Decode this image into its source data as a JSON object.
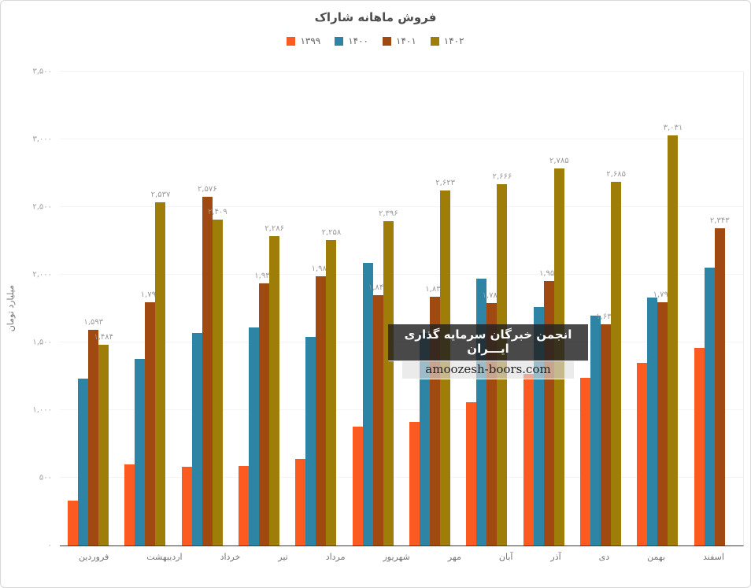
{
  "title": "فروش ماهانه شاراک",
  "watermark": {
    "line1": "انجمن خبرگان سرمایه گذاری ایـــران",
    "line2": "amoozesh-boors.com"
  },
  "chart_data": {
    "type": "bar",
    "title": "فروش ماهانه شاراک",
    "ylabel": "میلیارد تومان",
    "ylim": [
      0,
      3500
    ],
    "ytick_step": 500,
    "grid": "horizontal-faint",
    "legend_position": "top",
    "yticks": [
      {
        "value": 0,
        "label": "۰"
      },
      {
        "value": 500,
        "label": "۵۰۰"
      },
      {
        "value": 1000,
        "label": "۱,۰۰۰"
      },
      {
        "value": 1500,
        "label": "۱,۵۰۰"
      },
      {
        "value": 2000,
        "label": "۲,۰۰۰"
      },
      {
        "value": 2500,
        "label": "۲,۵۰۰"
      },
      {
        "value": 3000,
        "label": "۳,۰۰۰"
      },
      {
        "value": 3500,
        "label": "۳,۵۰۰"
      }
    ],
    "categories": [
      "فروردین",
      "اردیبهشت",
      "خرداد",
      "تیر",
      "مرداد",
      "شهریور",
      "مهر",
      "آبان",
      "آذر",
      "دی",
      "بهمن",
      "اسفند"
    ],
    "series": [
      {
        "key": "1399",
        "name": "۱۳۹۹",
        "color": "#FB5B21",
        "values": [
          330,
          600,
          580,
          585,
          640,
          880,
          910,
          1060,
          1270,
          1240,
          1350,
          1460
        ],
        "value_labels": [
          null,
          null,
          null,
          null,
          null,
          null,
          null,
          null,
          null,
          null,
          null,
          null
        ]
      },
      {
        "key": "1400",
        "name": "۱۴۰۰",
        "color": "#2E84A4",
        "values": [
          1230,
          1380,
          1570,
          1610,
          1540,
          2090,
          1570,
          1970,
          1760,
          1700,
          1830,
          2050
        ],
        "value_labels": [
          null,
          null,
          null,
          null,
          null,
          null,
          null,
          null,
          null,
          null,
          null,
          null
        ]
      },
      {
        "key": "1401",
        "name": "۱۴۰۱",
        "color": "#A04911",
        "values": [
          1593,
          1798,
          2576,
          1937,
          1987,
          1849,
          1837,
          1789,
          1955,
          1631,
          1796,
          2343
        ],
        "value_labels": [
          "۱,۵۹۳",
          "۱,۷۹۸",
          "۲,۵۷۶",
          "۱,۹۳۷",
          "۱,۹۸۷",
          "۱,۸۴۹",
          "۱,۸۳۷",
          "۱,۷۸۹",
          "۱,۹۵۵",
          "۱,۶۳۱",
          "۱,۷۹۶",
          "۲,۳۴۳"
        ]
      },
      {
        "key": "1402",
        "name": "۱۴۰۲",
        "color": "#9E7D09",
        "values": [
          1484,
          2537,
          2409,
          2286,
          2258,
          2396,
          2623,
          2666,
          2785,
          2685,
          3031,
          null
        ],
        "value_labels": [
          "۱,۴۸۴",
          "۲,۵۳۷",
          "۲,۴۰۹",
          "۲,۲۸۶",
          "۲,۲۵۸",
          "۲,۳۹۶",
          "۲,۶۲۳",
          "۲,۶۶۶",
          "۲,۷۸۵",
          "۲,۶۸۵",
          "۳,۰۳۱",
          null
        ]
      }
    ]
  }
}
